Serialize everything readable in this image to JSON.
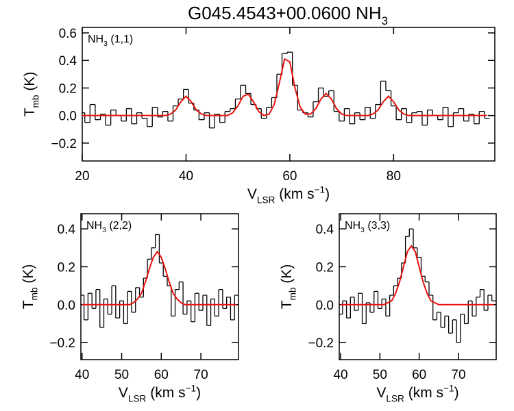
{
  "title": [
    {
      "text": "G045.4543+00.0600 NH"
    },
    {
      "text": "3",
      "shift": "sub"
    }
  ],
  "chart_data": [
    {
      "type": "step",
      "annotation": [
        {
          "text": "NH"
        },
        {
          "text": "3",
          "shift": "sub"
        },
        {
          "text": " (1,1)"
        }
      ],
      "xlabel": [
        {
          "text": "V"
        },
        {
          "text": "LSR",
          "shift": "sub"
        },
        {
          "text": " (km s"
        },
        {
          "text": "−1",
          "shift": "sup"
        },
        {
          "text": ")"
        }
      ],
      "ylabel": [
        {
          "text": "T"
        },
        {
          "text": "mb",
          "shift": "sub"
        },
        {
          "text": " (K)"
        }
      ],
      "xlim": [
        20,
        99.5
      ],
      "ylim": [
        -0.33,
        0.64
      ],
      "xticks": [
        20,
        40,
        60,
        80
      ],
      "yticks": [
        {
          "value": -0.2,
          "label": "−0.2"
        },
        {
          "value": 0,
          "label": "0.0"
        },
        {
          "value": 0.2,
          "label": "0.2"
        },
        {
          "value": 0.4,
          "label": "0.4"
        },
        {
          "value": 0.6,
          "label": "0.6"
        }
      ],
      "x": [
        20,
        21,
        22,
        23,
        24,
        25,
        26,
        27,
        28,
        29,
        30,
        31,
        32,
        33,
        34,
        35,
        36,
        37,
        38,
        39,
        40,
        41,
        42,
        43,
        44,
        45,
        46,
        47,
        48,
        49,
        50,
        51,
        52,
        53,
        54,
        55,
        56,
        57,
        58,
        59,
        60,
        61,
        62,
        63,
        64,
        65,
        66,
        67,
        68,
        69,
        70,
        71,
        72,
        73,
        74,
        75,
        76,
        77,
        78,
        79,
        80,
        81,
        82,
        83,
        84,
        85,
        86,
        87,
        88,
        89,
        90,
        91,
        92,
        93,
        94,
        95,
        96,
        97,
        98
      ],
      "series": [
        {
          "style": "step",
          "color": "#000000",
          "values": [
            0.02,
            -0.05,
            0.08,
            -0.03,
            0.01,
            -0.07,
            0.04,
            0.0,
            -0.04,
            0.05,
            -0.06,
            0.02,
            -0.02,
            -0.08,
            0.06,
            -0.01,
            0.03,
            -0.04,
            0.07,
            0.12,
            0.19,
            0.09,
            0.04,
            -0.03,
            0.02,
            -0.09,
            0.01,
            -0.05,
            0.03,
            0.05,
            0.12,
            0.22,
            0.16,
            0.08,
            0.05,
            -0.02,
            0.06,
            0.13,
            0.3,
            0.45,
            0.46,
            0.22,
            0.04,
            0.02,
            -0.01,
            0.1,
            0.2,
            0.14,
            0.18,
            0.03,
            -0.04,
            0.05,
            -0.06,
            0.02,
            -0.03,
            0.06,
            -0.02,
            0.08,
            0.25,
            0.18,
            0.07,
            -0.03,
            0.05,
            -0.05,
            0.02,
            0.03,
            -0.07,
            0.04,
            0.0,
            -0.03,
            0.06,
            -0.08,
            0.02,
            0.05,
            -0.04,
            0.01,
            -0.06,
            0.03,
            -0.02
          ]
        },
        {
          "style": "line",
          "color": "#e8120c",
          "values": [
            0,
            0,
            0,
            0,
            0,
            0,
            0,
            0,
            0,
            0,
            0,
            0,
            0,
            0,
            0,
            0,
            0,
            0.01,
            0.04,
            0.1,
            0.14,
            0.1,
            0.04,
            0.01,
            0,
            0,
            0,
            0,
            0,
            0.02,
            0.07,
            0.14,
            0.155,
            0.1,
            0.03,
            0,
            0.01,
            0.08,
            0.24,
            0.41,
            0.39,
            0.2,
            0.06,
            0.01,
            0.01,
            0.05,
            0.12,
            0.16,
            0.12,
            0.05,
            0.01,
            0,
            0,
            0,
            0,
            0,
            0.01,
            0.04,
            0.1,
            0.14,
            0.1,
            0.04,
            0.01,
            0,
            0,
            0,
            0,
            0,
            0,
            0,
            0,
            0,
            0,
            0,
            0,
            0,
            0,
            0,
            0
          ]
        }
      ]
    },
    {
      "type": "step",
      "annotation": [
        {
          "text": "NH"
        },
        {
          "text": "3",
          "shift": "sub"
        },
        {
          "text": " (2,2)"
        }
      ],
      "xlabel": [
        {
          "text": "V"
        },
        {
          "text": "LSR",
          "shift": "sub"
        },
        {
          "text": " (km s"
        },
        {
          "text": "−1",
          "shift": "sup"
        },
        {
          "text": ")"
        }
      ],
      "ylabel": [
        {
          "text": "T"
        },
        {
          "text": "mb",
          "shift": "sub"
        },
        {
          "text": " (K)"
        }
      ],
      "xlim": [
        39.7,
        79.5
      ],
      "ylim": [
        -0.29,
        0.48
      ],
      "xticks": [
        40,
        50,
        60,
        70
      ],
      "yticks": [
        {
          "value": -0.2,
          "label": "−0.2"
        },
        {
          "value": 0,
          "label": "0.0"
        },
        {
          "value": 0.2,
          "label": "0.2"
        },
        {
          "value": 0.4,
          "label": "0.4"
        }
      ],
      "x": [
        40,
        41,
        42,
        43,
        44,
        45,
        46,
        47,
        48,
        49,
        50,
        51,
        52,
        53,
        54,
        55,
        56,
        57,
        58,
        59,
        60,
        61,
        62,
        63,
        64,
        65,
        66,
        67,
        68,
        69,
        70,
        71,
        72,
        73,
        74,
        75,
        76,
        77,
        78,
        79
      ],
      "series": [
        {
          "style": "step",
          "color": "#000000",
          "values": [
            0.05,
            -0.08,
            0.06,
            -0.02,
            0.08,
            -0.12,
            0.03,
            -0.05,
            0.1,
            -0.07,
            0.02,
            -0.1,
            0.07,
            -0.04,
            0.09,
            0.04,
            0.14,
            0.24,
            0.3,
            0.37,
            0.22,
            0.15,
            0.1,
            -0.06,
            0.08,
            0.12,
            -0.05,
            0.02,
            -0.09,
            0.06,
            -0.03,
            0.05,
            -0.11,
            0.03,
            -0.06,
            0.08,
            -0.02,
            0.04,
            -0.08,
            0.05
          ]
        },
        {
          "style": "line",
          "color": "#e8120c",
          "values": [
            0,
            0,
            0,
            0,
            0,
            0,
            0,
            0,
            0,
            0,
            0,
            0,
            0,
            0.01,
            0.03,
            0.06,
            0.12,
            0.19,
            0.25,
            0.28,
            0.25,
            0.19,
            0.12,
            0.06,
            0.03,
            0.01,
            0,
            0,
            0,
            0,
            0,
            0,
            0,
            0,
            0,
            0,
            0,
            0,
            0,
            0
          ]
        }
      ]
    },
    {
      "type": "step",
      "annotation": [
        {
          "text": "NH"
        },
        {
          "text": "3",
          "shift": "sub"
        },
        {
          "text": " (3,3)"
        }
      ],
      "xlabel": [
        {
          "text": "V"
        },
        {
          "text": "LSR",
          "shift": "sub"
        },
        {
          "text": " (km s"
        },
        {
          "text": "−1",
          "shift": "sup"
        },
        {
          "text": ")"
        }
      ],
      "ylabel": [
        {
          "text": "T"
        },
        {
          "text": "mb",
          "shift": "sub"
        },
        {
          "text": " (K)"
        }
      ],
      "xlim": [
        39.65,
        79.6
      ],
      "ylim": [
        -0.29,
        0.48
      ],
      "xticks": [
        40,
        50,
        60,
        70
      ],
      "yticks": [
        {
          "value": -0.2,
          "label": "−0.2"
        },
        {
          "value": 0,
          "label": "0.0"
        },
        {
          "value": 0.2,
          "label": "0.2"
        },
        {
          "value": 0.4,
          "label": "0.4"
        }
      ],
      "x": [
        40,
        41,
        42,
        43,
        44,
        45,
        46,
        47,
        48,
        49,
        50,
        51,
        52,
        53,
        54,
        55,
        56,
        57,
        58,
        59,
        60,
        61,
        62,
        63,
        64,
        65,
        66,
        67,
        68,
        69,
        70,
        71,
        72,
        73,
        74,
        75,
        76,
        77,
        78,
        79
      ],
      "series": [
        {
          "style": "step",
          "color": "#000000",
          "values": [
            -0.05,
            0.02,
            -0.07,
            0.04,
            -0.03,
            0.06,
            -0.1,
            0.01,
            -0.04,
            0.07,
            -0.02,
            0.03,
            -0.06,
            0.05,
            0.1,
            0.14,
            0.22,
            0.36,
            0.4,
            0.3,
            0.25,
            0.15,
            0.12,
            0.05,
            -0.08,
            -0.04,
            -0.12,
            -0.06,
            -0.15,
            -0.08,
            -0.2,
            -0.05,
            -0.1,
            0.02,
            -0.06,
            0.04,
            0.08,
            -0.03,
            0.05,
            0.02
          ]
        },
        {
          "style": "line",
          "color": "#e8120c",
          "values": [
            0,
            0,
            0,
            0,
            0,
            0,
            0,
            0,
            0,
            0,
            0,
            0,
            0.01,
            0.02,
            0.06,
            0.12,
            0.2,
            0.28,
            0.31,
            0.28,
            0.2,
            0.12,
            0.06,
            0.02,
            0.01,
            0,
            0,
            0,
            0,
            0,
            0,
            0,
            0,
            0,
            0,
            0,
            0,
            0,
            0,
            0
          ]
        }
      ]
    }
  ]
}
